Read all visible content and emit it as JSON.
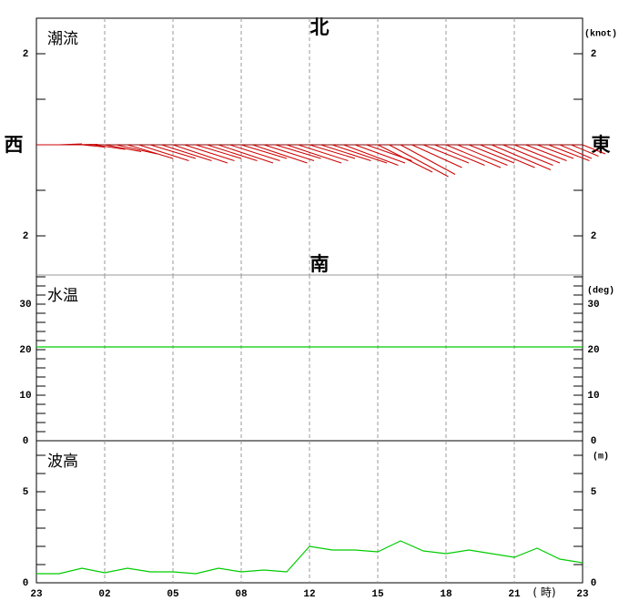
{
  "chart_data": [
    {
      "type": "vector",
      "label": "潮流",
      "unit": "(knot)",
      "compass": {
        "north": "北",
        "south": "南",
        "west": "西",
        "east": "東"
      },
      "xlim": [
        0,
        24
      ],
      "ylim": [
        -2.86,
        2.78
      ],
      "yticks": [
        2,
        {
          "value": -2,
          "label": "2"
        }
      ],
      "minor_yticks": [
        1,
        -1
      ],
      "color": "#cc0000",
      "x": [
        0,
        0.5,
        1,
        1.5,
        2,
        2.5,
        3,
        3.5,
        4,
        4.5,
        5,
        5.5,
        6,
        6.5,
        7,
        7.5,
        8,
        8.5,
        9,
        9.5,
        10,
        10.5,
        11,
        11.5,
        12,
        12.5,
        13,
        13.5,
        14,
        14.5,
        15,
        15.5,
        16,
        16.5,
        17,
        17.5,
        18,
        18.5,
        19,
        19.5,
        20,
        20.5,
        21,
        21.5,
        22,
        22.5,
        23,
        23.5,
        24
      ],
      "east": [
        0.3,
        0.4,
        0.5,
        0.6,
        0.5,
        0.7,
        0.8,
        0.9,
        1.0,
        1.1,
        1.0,
        1.1,
        1.2,
        1.1,
        1.0,
        1.1,
        1.2,
        1.1,
        1.0,
        1.2,
        1.1,
        1.0,
        1.2,
        1.1,
        1.0,
        1.1,
        1.2,
        1.2,
        1.1,
        1.0,
        1.2,
        1.3,
        1.2,
        1.1,
        1.0,
        1.1,
        1.2,
        1.1,
        1.0,
        1.2,
        1.3,
        1.1,
        1.0,
        0.9,
        0.8,
        0.9,
        0.7,
        0.6,
        0.5
      ],
      "north": [
        0,
        0,
        0.02,
        0.01,
        -0.05,
        -0.1,
        -0.15,
        -0.2,
        -0.3,
        -0.35,
        -0.3,
        -0.35,
        -0.4,
        -0.35,
        -0.3,
        -0.35,
        -0.4,
        -0.35,
        -0.3,
        -0.4,
        -0.35,
        -0.3,
        -0.4,
        -0.35,
        -0.3,
        -0.35,
        -0.4,
        -0.45,
        -0.4,
        -0.35,
        -0.6,
        -0.7,
        -0.65,
        -0.5,
        -0.4,
        -0.45,
        -0.5,
        -0.45,
        -0.4,
        -0.5,
        -0.55,
        -0.45,
        -0.4,
        -0.35,
        -0.3,
        -0.35,
        -0.3,
        -0.25,
        -0.2
      ]
    },
    {
      "type": "line",
      "label": "水温",
      "unit": "(deg)",
      "xlim": [
        0,
        24
      ],
      "ylim": [
        0,
        36.4
      ],
      "yticks": [
        0,
        10,
        20,
        30
      ],
      "minor_yticks": [
        2,
        4,
        6,
        8,
        12,
        14,
        16,
        18,
        22,
        24,
        26,
        28,
        32,
        34,
        36
      ],
      "color": "#00cc00",
      "x": [
        0,
        1,
        2,
        3,
        4,
        5,
        6,
        7,
        8,
        9,
        10,
        11,
        12,
        13,
        14,
        15,
        16,
        17,
        18,
        19,
        20,
        21,
        22,
        23,
        24
      ],
      "values": [
        20.6,
        20.6,
        20.6,
        20.6,
        20.6,
        20.6,
        20.6,
        20.6,
        20.6,
        20.6,
        20.6,
        20.6,
        20.6,
        20.6,
        20.6,
        20.6,
        20.6,
        20.6,
        20.6,
        20.6,
        20.6,
        20.6,
        20.6,
        20.6,
        20.6
      ]
    },
    {
      "type": "line",
      "label": "波高",
      "unit": "(m)",
      "xlim": [
        0,
        24
      ],
      "ylim": [
        0,
        7.8
      ],
      "yticks": [
        0,
        5
      ],
      "minor_yticks": [
        1,
        2,
        3,
        4,
        6,
        7
      ],
      "xticks": [
        {
          "value": 0,
          "label": "23"
        },
        {
          "value": 3,
          "label": "02"
        },
        {
          "value": 6,
          "label": "05"
        },
        {
          "value": 9,
          "label": "08"
        },
        12,
        15,
        18,
        21,
        {
          "value": 24,
          "label": "23"
        }
      ],
      "xlabel": "( 時)",
      "color": "#00cc00",
      "x": [
        0,
        1,
        2,
        3,
        4,
        5,
        6,
        7,
        8,
        9,
        10,
        11,
        12,
        13,
        14,
        15,
        16,
        17,
        18,
        19,
        20,
        21,
        22,
        23,
        24
      ],
      "values": [
        0.5,
        0.5,
        0.8,
        0.55,
        0.8,
        0.6,
        0.6,
        0.5,
        0.8,
        0.6,
        0.7,
        0.6,
        2.0,
        1.8,
        1.8,
        1.7,
        2.3,
        1.75,
        1.6,
        1.8,
        1.6,
        1.4,
        1.9,
        1.3,
        1.1
      ]
    }
  ]
}
